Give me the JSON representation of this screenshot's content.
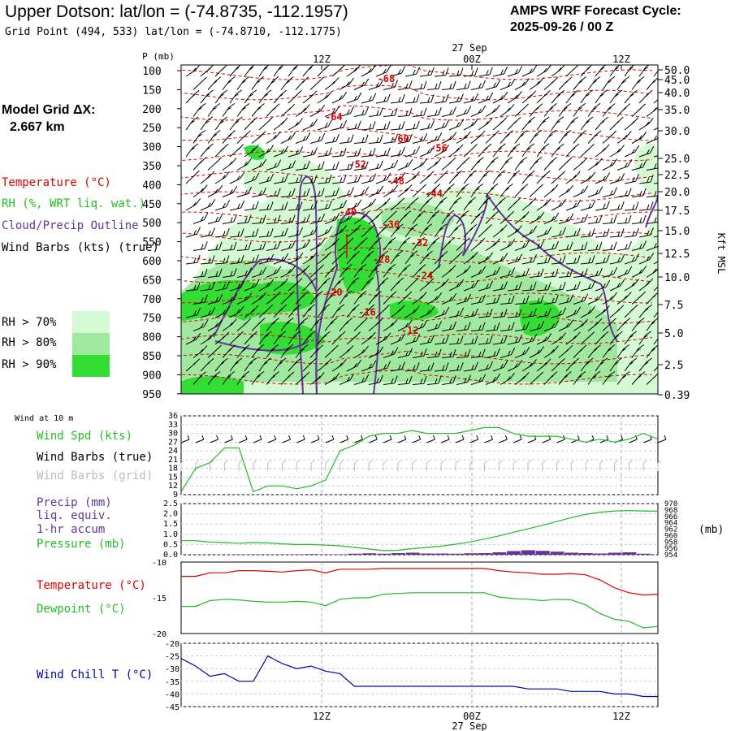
{
  "header": {
    "title": "Upper Dotson:  lat/lon = (-74.8735, -112.1957)",
    "grid_point": "Grid Point (494, 533) lat/lon = (-74.8710, -112.1775)",
    "cycle_line1": "AMPS WRF Forecast Cycle:",
    "cycle_line2": "2025-09-26 / 00  Z"
  },
  "legend": {
    "model_grid_line1": "Model Grid ΔX:",
    "model_grid_line2": "2.667 km",
    "temperature": "Temperature (°C)",
    "rh": "RH (%, WRT liq. wat.)",
    "cloud": "Cloud/Precip Outline",
    "wind_barbs": "Wind Barbs (kts) (true)",
    "rh70": "RH > 70%",
    "rh80": "RH > 80%",
    "rh90": "RH > 90%",
    "rh_colors": [
      "#d4fad4",
      "#a0e8a0",
      "#33dd33"
    ]
  },
  "colors": {
    "temperature": "#dd0000",
    "rh": "#22bb22",
    "cloud": "#663399",
    "windchill": "#0000aa",
    "precip": "#663399",
    "grid": "#aaaaaa"
  },
  "chart_data": [
    {
      "type": "heatmap",
      "name": "vertical cross-section",
      "pressure_label": "P (mb)",
      "height_label": "Kft MSL",
      "top_date": "27 Sep",
      "time_ticks": [
        "12Z",
        "00Z",
        "12Z"
      ],
      "pressure_levels": [
        100,
        150,
        200,
        250,
        300,
        350,
        400,
        450,
        500,
        550,
        600,
        650,
        700,
        750,
        800,
        850,
        900,
        950
      ],
      "height_levels": [
        "50.0",
        "45.0",
        "40.0",
        "35.0",
        "30.0",
        "25.0",
        "22.5",
        "20.0",
        "17.5",
        "15.0",
        "12.5",
        "10.0",
        "7.5",
        "5.0",
        "2.5",
        "0.39"
      ],
      "isotherm_labels": [
        {
          "label": "-68",
          "t": 0.43,
          "p": 125
        },
        {
          "label": "-64",
          "t": 0.32,
          "p": 230
        },
        {
          "label": "-60",
          "t": 0.46,
          "p": 290
        },
        {
          "label": "-56",
          "t": 0.54,
          "p": 315
        },
        {
          "label": "-52",
          "t": 0.37,
          "p": 360
        },
        {
          "label": "-48",
          "t": 0.45,
          "p": 405
        },
        {
          "label": "-44",
          "t": 0.53,
          "p": 440
        },
        {
          "label": "-40",
          "t": 0.35,
          "p": 490
        },
        {
          "label": "-36",
          "t": 0.44,
          "p": 525
        },
        {
          "label": "-32",
          "t": 0.5,
          "p": 575
        },
        {
          "label": "-28",
          "t": 0.42,
          "p": 620
        },
        {
          "label": "-24",
          "t": 0.51,
          "p": 665
        },
        {
          "label": "-20",
          "t": 0.32,
          "p": 710
        },
        {
          "label": "-16",
          "t": 0.39,
          "p": 765
        },
        {
          "label": "-12",
          "t": 0.48,
          "p": 815
        }
      ]
    },
    {
      "type": "line",
      "name": "wind speed 10 m",
      "label_top": "Wind at 10 m",
      "legend": [
        "Wind Spd (kts)",
        "Wind Barbs (true)",
        "Wind Barbs (grid)"
      ],
      "yticks": [
        9,
        12,
        15,
        18,
        21,
        24,
        27,
        30,
        33,
        36
      ],
      "ylim": [
        9,
        36
      ],
      "time_ticks": [
        "12Z",
        "00Z",
        "12Z"
      ],
      "series": [
        {
          "name": "Wind Spd (kts)",
          "values": [
            10,
            18,
            20,
            25,
            25,
            10,
            12,
            12,
            11,
            12,
            14,
            24,
            26,
            29,
            30,
            30,
            31,
            30,
            30,
            30,
            31,
            32,
            32,
            30,
            29,
            29,
            29,
            28,
            27,
            28,
            27,
            28,
            30,
            28
          ]
        }
      ]
    },
    {
      "type": "line",
      "name": "precip and pressure",
      "legend": [
        "Precip (mm)",
        "liq. equiv.",
        "1-hr accum",
        "Pressure (mb)"
      ],
      "precip_ticks": [
        "0.0",
        "0.5",
        "1.0",
        "1.5",
        "2.0",
        "2.5"
      ],
      "precip_lim": [
        0,
        2.5
      ],
      "pressure_ticks": [
        "970",
        "968",
        "966",
        "964",
        "962",
        "960",
        "958",
        "956",
        "954"
      ],
      "pressure_unit": "(mb)",
      "pressure_lim": [
        954,
        970
      ],
      "series": [
        {
          "name": "Pressure (mb)",
          "values": [
            958.4,
            958.4,
            958,
            957.8,
            957.6,
            957.8,
            957.7,
            957.4,
            957.2,
            957.2,
            957,
            956.8,
            956.3,
            955.8,
            955.3,
            955.4,
            955.9,
            956.3,
            956.7,
            957.3,
            958,
            958.9,
            959.9,
            961,
            962.1,
            963.2,
            964.4,
            965.6,
            966.6,
            967.3,
            967.7,
            967.8,
            967.7,
            967.6
          ]
        },
        {
          "name": "Precip (mm)",
          "values": [
            0,
            0,
            0,
            0,
            0.02,
            0.02,
            0.01,
            0.01,
            0.02,
            0.03,
            0.01,
            0.02,
            0.05,
            0.07,
            0.05,
            0.08,
            0.1,
            0.06,
            0.06,
            0.05,
            0.07,
            0.08,
            0.12,
            0.18,
            0.22,
            0.19,
            0.15,
            0.1,
            0.08,
            0.06,
            0.1,
            0.12,
            0.05,
            0
          ]
        }
      ]
    },
    {
      "type": "line",
      "name": "temperature and dewpoint",
      "legend": [
        "Temperature (°C)",
        "Dewpoint (°C)"
      ],
      "yticks": [
        "-10",
        "-15",
        "-20"
      ],
      "ylim": [
        -20,
        -10
      ],
      "series": [
        {
          "name": "Temperature (°C)",
          "values": [
            -12,
            -12,
            -11.5,
            -11.5,
            -11.2,
            -11.2,
            -11.3,
            -11.4,
            -11.2,
            -11.1,
            -11.5,
            -11,
            -11,
            -11,
            -10.9,
            -10.9,
            -10.9,
            -10.9,
            -10.9,
            -10.9,
            -10.9,
            -10.9,
            -11.2,
            -11.4,
            -11.5,
            -11.7,
            -11.7,
            -11.6,
            -11.8,
            -12.5,
            -13.6,
            -14.3,
            -14.6,
            -14.5
          ]
        },
        {
          "name": "Dewpoint (°C)",
          "values": [
            -16.2,
            -16.2,
            -15.4,
            -15.2,
            -15.3,
            -15.5,
            -15.6,
            -15.6,
            -15.5,
            -15.6,
            -16.1,
            -15.2,
            -15,
            -15,
            -14.5,
            -14.4,
            -14.3,
            -14.3,
            -14.3,
            -14.3,
            -14.3,
            -14.3,
            -14.9,
            -15.1,
            -15.2,
            -15.4,
            -15.2,
            -15.3,
            -16,
            -17.2,
            -18,
            -18.3,
            -19.2,
            -19
          ]
        }
      ]
    },
    {
      "type": "line",
      "name": "wind chill",
      "legend": [
        "Wind Chill T (°C)"
      ],
      "yticks": [
        "-20",
        "-25",
        "-30",
        "-35",
        "-40",
        "-45"
      ],
      "ylim": [
        -45,
        -20
      ],
      "series": [
        {
          "name": "Wind Chill T (°C)",
          "values": [
            -26,
            -29,
            -33,
            -32,
            -35,
            -35,
            -25,
            -28,
            -30,
            -29,
            -31,
            -32,
            -37,
            -37,
            -37,
            -37,
            -37,
            -37,
            -37,
            -37,
            -37,
            -37,
            -37,
            -37,
            -38,
            -38,
            -38,
            -39,
            -39,
            -39,
            -40,
            -40,
            -41,
            -41
          ]
        }
      ]
    }
  ],
  "bottom_axis": {
    "ticks": [
      "12Z",
      "00Z",
      "12Z"
    ],
    "date": "27 Sep"
  }
}
